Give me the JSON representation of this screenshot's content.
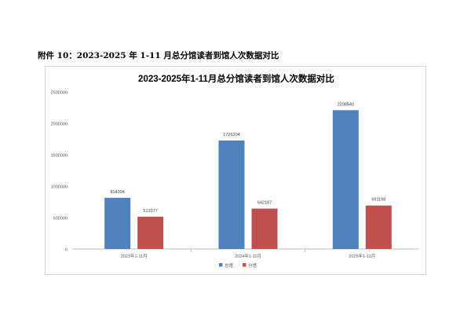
{
  "caption": "附件 10：2023-2025 年 1-11 月总分馆读者到馆人次数据对比",
  "chart_data": {
    "type": "bar",
    "title": "2023-2025年1-11月总分馆读者到馆人次数据对比",
    "categories": [
      "2023年1-11月",
      "2024年1-11月",
      "2025年1-11月"
    ],
    "series": [
      {
        "name": "总馆",
        "color": "#4f81bd",
        "values": [
          814394,
          1726204,
          2208540
        ]
      },
      {
        "name": "分馆",
        "color": "#c0504d",
        "values": [
          513377,
          642187,
          691198
        ]
      }
    ],
    "ylim": [
      0,
      2500000
    ],
    "yticks": [
      0,
      500000,
      1000000,
      1500000,
      2000000,
      2500000
    ],
    "grid": false,
    "legend": "bottom",
    "data_labels": true
  }
}
